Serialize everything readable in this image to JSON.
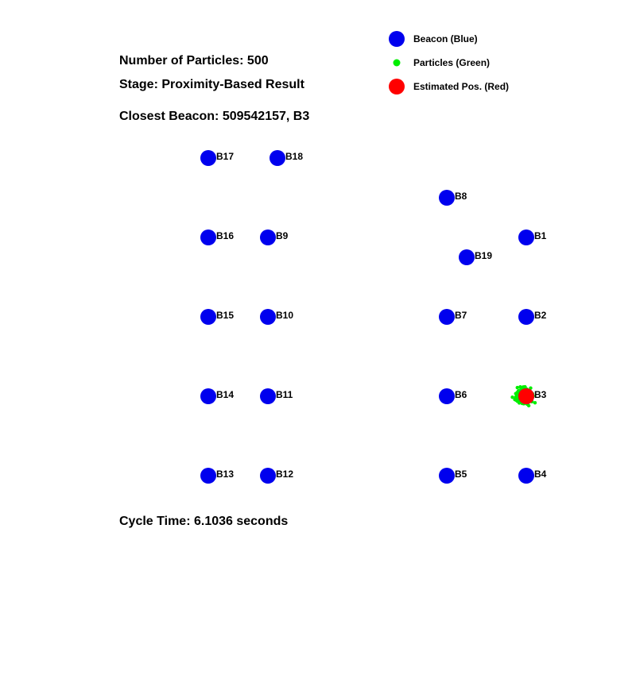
{
  "info": {
    "particles": "Number of Particles: 500",
    "stage": "Stage: Proximity-Based Result",
    "closest": "Closest Beacon: 509542157, B3",
    "cycle": "Cycle Time: 6.1036 seconds"
  },
  "legend": {
    "beacon": "Beacon (Blue)",
    "particles": "Particles (Green)",
    "estimate": "Estimated Pos. (Red)"
  },
  "colors": {
    "beacon": "#0000ee",
    "particle": "#00ee00",
    "estimate": "#ff0000",
    "text": "#000000",
    "background": "#ffffff"
  },
  "beacons": [
    {
      "label": "B1",
      "x": 4,
      "y": 3
    },
    {
      "label": "B2",
      "x": 4,
      "y": 2
    },
    {
      "label": "B3",
      "x": 4,
      "y": 1
    },
    {
      "label": "B4",
      "x": 4,
      "y": 0
    },
    {
      "label": "B5",
      "x": 3,
      "y": 0
    },
    {
      "label": "B6",
      "x": 3,
      "y": 1
    },
    {
      "label": "B7",
      "x": 3,
      "y": 2
    },
    {
      "label": "B8",
      "x": 3,
      "y": 3.5
    },
    {
      "label": "B9",
      "x": 0.75,
      "y": 3
    },
    {
      "label": "B10",
      "x": 0.75,
      "y": 2
    },
    {
      "label": "B11",
      "x": 0.75,
      "y": 1
    },
    {
      "label": "B12",
      "x": 0.75,
      "y": 0
    },
    {
      "label": "B13",
      "x": 0,
      "y": 0
    },
    {
      "label": "B14",
      "x": 0,
      "y": 1
    },
    {
      "label": "B15",
      "x": 0,
      "y": 2
    },
    {
      "label": "B16",
      "x": 0,
      "y": 3
    },
    {
      "label": "B17",
      "x": 0,
      "y": 4
    },
    {
      "label": "B18",
      "x": 0.87,
      "y": 4
    },
    {
      "label": "B19",
      "x": 3.25,
      "y": 2.75
    }
  ],
  "estimate": {
    "x": 4,
    "y": 1
  },
  "particle_cloud": {
    "center_x": 3.96,
    "center_y": 1,
    "spread": 0.07,
    "count": 500
  }
}
